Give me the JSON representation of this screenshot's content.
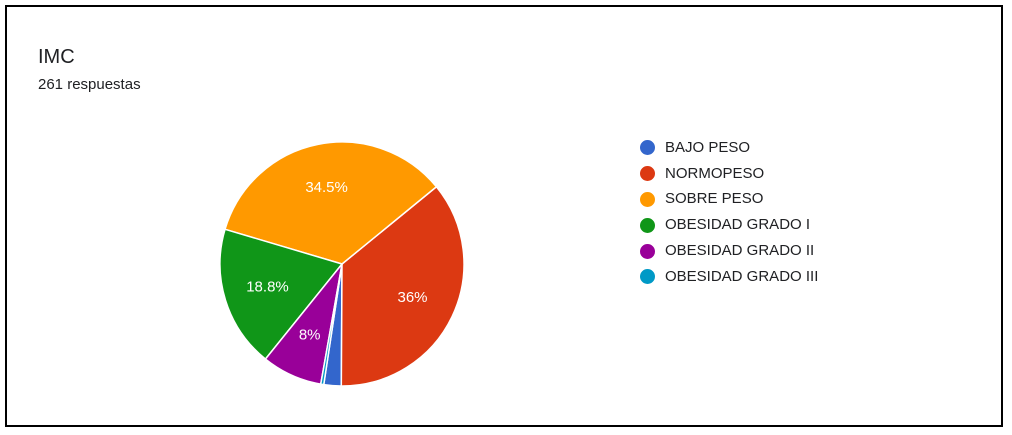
{
  "card": {
    "title": "IMC",
    "subtitle": "261 respuestas"
  },
  "chart_data": {
    "type": "pie",
    "title": "IMC",
    "subtitle": "261 respuestas",
    "legend_position": "right",
    "slices": [
      {
        "label": "BAJO PESO",
        "value": 2.3,
        "color": "#3366cc",
        "data_label": ""
      },
      {
        "label": "NORMOPESO",
        "value": 36,
        "color": "#dc3912",
        "data_label": "36%"
      },
      {
        "label": "SOBRE PESO",
        "value": 34.5,
        "color": "#ff9900",
        "data_label": "34.5%"
      },
      {
        "label": "OBESIDAD GRADO I",
        "value": 18.8,
        "color": "#109618",
        "data_label": "18.8%"
      },
      {
        "label": "OBESIDAD GRADO II",
        "value": 8,
        "color": "#990099",
        "data_label": "8%"
      },
      {
        "label": "OBESIDAD GRADO III",
        "value": 0.4,
        "color": "#0099c6",
        "data_label": ""
      }
    ]
  }
}
